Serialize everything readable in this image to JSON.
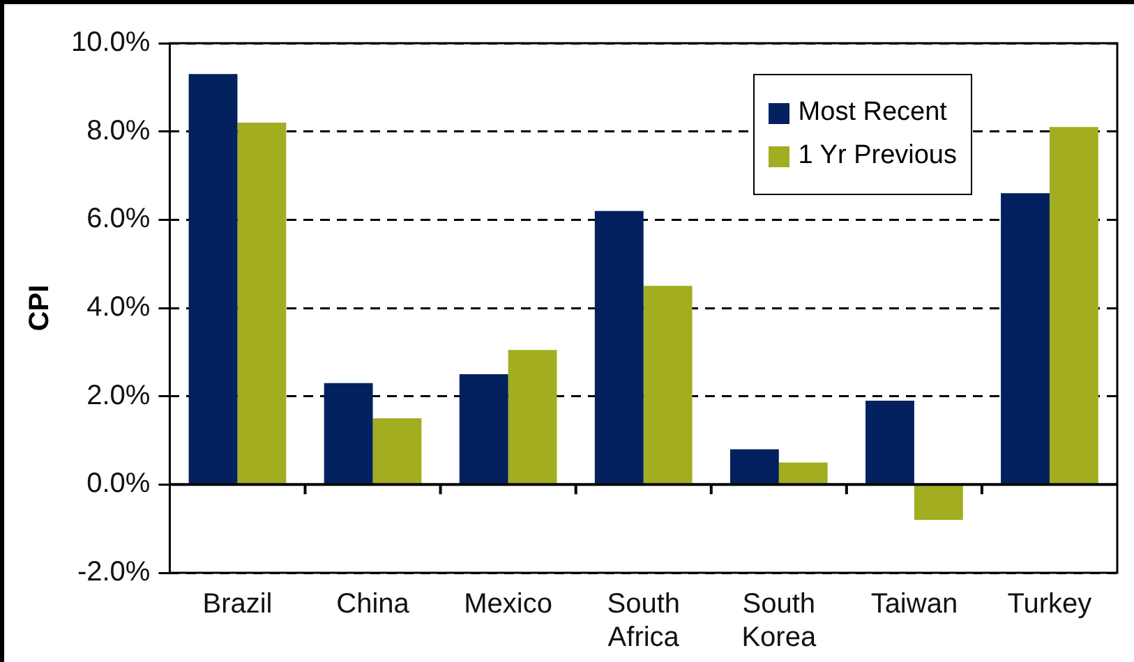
{
  "chart_data": {
    "type": "bar",
    "ylabel": "CPI",
    "categories": [
      "Brazil",
      "China",
      "Mexico",
      "South Africa",
      "South Korea",
      "Taiwan",
      "Turkey"
    ],
    "series": [
      {
        "name": "Most Recent",
        "color": "#02215e",
        "values": [
          9.3,
          2.3,
          2.5,
          6.2,
          0.8,
          1.9,
          6.6
        ]
      },
      {
        "name": "1 Yr Previous",
        "color": "#a2ad20",
        "values": [
          8.2,
          1.5,
          3.05,
          4.5,
          0.5,
          -0.8,
          8.1
        ]
      }
    ],
    "ylim": [
      -2,
      10
    ],
    "yticks": [
      {
        "value": -2,
        "label": "-2.0%"
      },
      {
        "value": 0,
        "label": "0.0%"
      },
      {
        "value": 2,
        "label": "2.0%"
      },
      {
        "value": 4,
        "label": "4.0%"
      },
      {
        "value": 6,
        "label": "6.0%"
      },
      {
        "value": 8,
        "label": "8.0%"
      },
      {
        "value": 10,
        "label": "10.0%"
      }
    ],
    "grid": "y",
    "legend": "top right"
  }
}
